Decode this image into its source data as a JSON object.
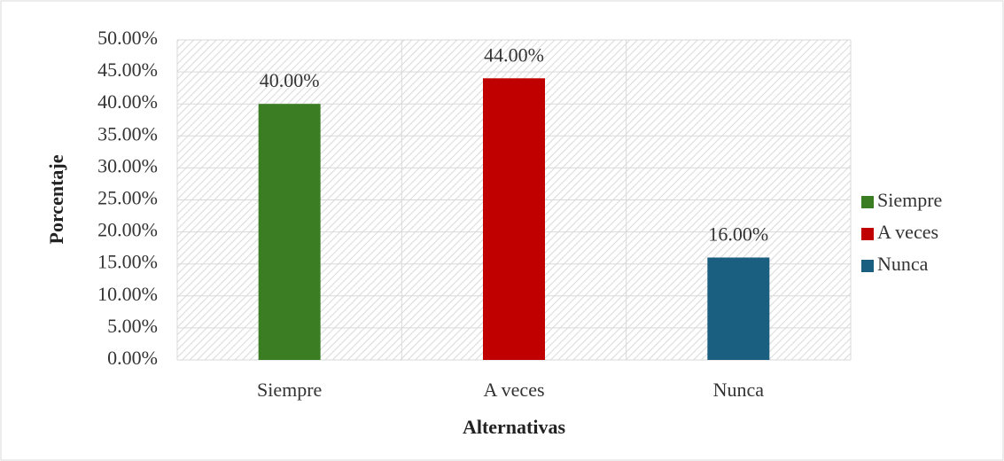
{
  "chart_data": {
    "type": "bar",
    "categories": [
      "Siempre",
      "A veces",
      "Nunca"
    ],
    "values": [
      40,
      44,
      16
    ],
    "value_labels": [
      "40.00%",
      "44.00%",
      "16.00%"
    ],
    "colors": [
      "#3a7d22",
      "#c00000",
      "#1a5e80"
    ],
    "ylabel": "Porcentaje",
    "xlabel": "Alternativas",
    "ylim": [
      0,
      50
    ],
    "yticks": [
      {
        "value": 0,
        "label": "0.00%"
      },
      {
        "value": 5,
        "label": "5.00%"
      },
      {
        "value": 10,
        "label": "10.00%"
      },
      {
        "value": 15,
        "label": "15.00%"
      },
      {
        "value": 20,
        "label": "20.00%"
      },
      {
        "value": 25,
        "label": "25.00%"
      },
      {
        "value": 30,
        "label": "30.00%"
      },
      {
        "value": 35,
        "label": "35.00%"
      },
      {
        "value": 40,
        "label": "40.00%"
      },
      {
        "value": 45,
        "label": "45.00%"
      },
      {
        "value": 50,
        "label": "50.00%"
      }
    ],
    "grid": true,
    "legend": "right"
  }
}
